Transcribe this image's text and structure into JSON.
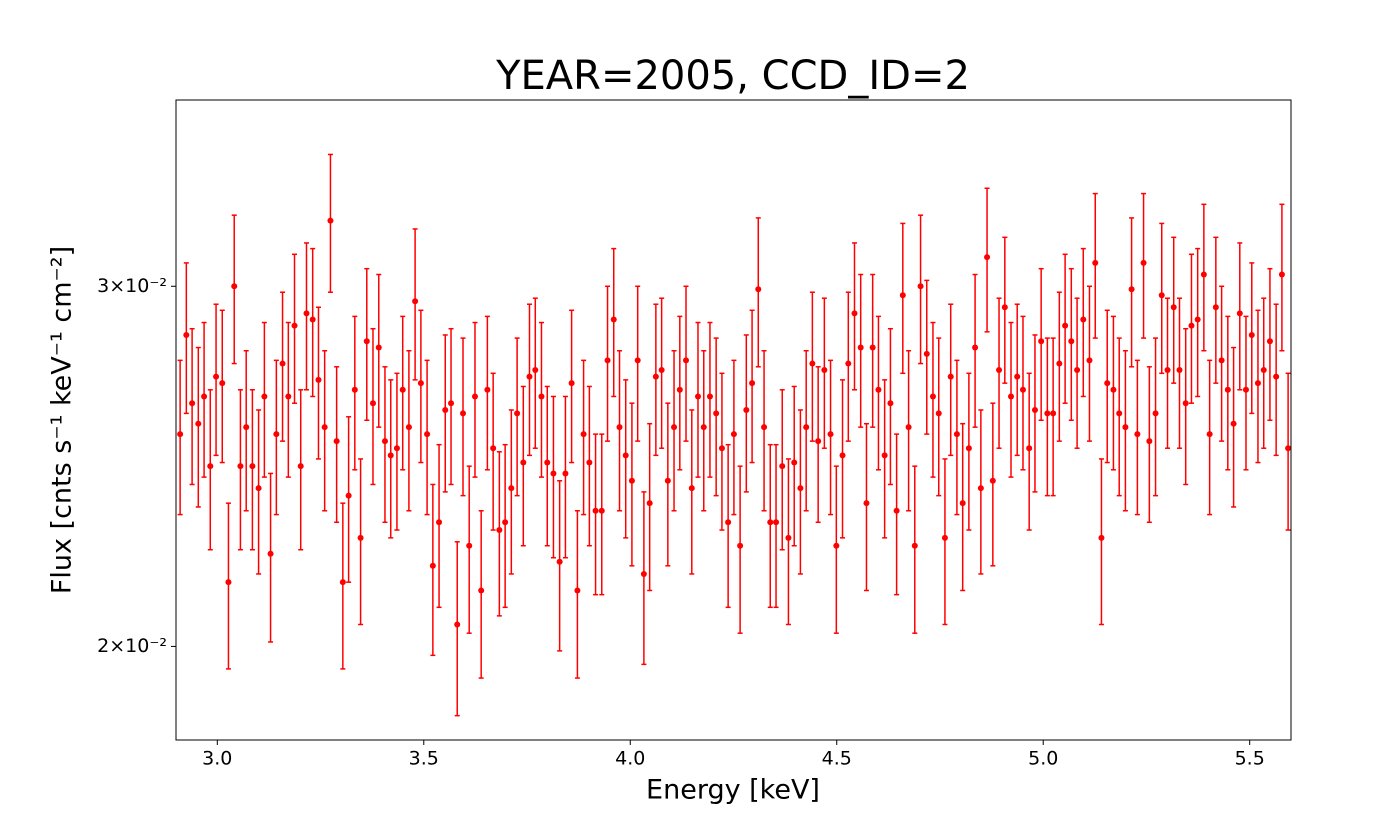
{
  "chart_data": {
    "type": "errorbar-scatter",
    "title": "YEAR=2005, CCD_ID=2",
    "xlabel": "Energy [keV]",
    "ylabel": "Flux [cnts s⁻¹ keV⁻¹ cm⁻²]",
    "yscale": "log",
    "color": "#ff0000",
    "xlim": [
      2.9,
      5.6
    ],
    "ylim": [
      0.018,
      0.037
    ],
    "xticks": [
      {
        "value": 3,
        "label": "3.0"
      },
      3.5,
      {
        "value": 4,
        "label": "4.0"
      },
      4.5,
      {
        "value": 5,
        "label": "5.0"
      },
      5.5
    ],
    "yticks": [
      {
        "value": 0.02,
        "label": "2×10⁻²"
      },
      {
        "value": 0.03,
        "label": "3×10⁻²"
      }
    ],
    "x": [
      2.91,
      2.925,
      2.939,
      2.954,
      2.968,
      2.983,
      2.997,
      3.012,
      3.027,
      3.041,
      3.056,
      3.07,
      3.085,
      3.1,
      3.114,
      3.129,
      3.143,
      3.158,
      3.172,
      3.187,
      3.202,
      3.216,
      3.231,
      3.245,
      3.26,
      3.274,
      3.289,
      3.304,
      3.318,
      3.333,
      3.347,
      3.362,
      3.377,
      3.391,
      3.406,
      3.42,
      3.435,
      3.449,
      3.464,
      3.479,
      3.493,
      3.508,
      3.522,
      3.537,
      3.552,
      3.566,
      3.581,
      3.595,
      3.61,
      3.624,
      3.639,
      3.654,
      3.668,
      3.683,
      3.697,
      3.712,
      3.726,
      3.741,
      3.756,
      3.77,
      3.785,
      3.799,
      3.814,
      3.829,
      3.843,
      3.858,
      3.872,
      3.887,
      3.901,
      3.916,
      3.931,
      3.945,
      3.96,
      3.974,
      3.989,
      4.004,
      4.018,
      4.033,
      4.047,
      4.062,
      4.076,
      4.091,
      4.106,
      4.12,
      4.135,
      4.149,
      4.164,
      4.178,
      4.193,
      4.208,
      4.222,
      4.237,
      4.251,
      4.266,
      4.281,
      4.295,
      4.31,
      4.324,
      4.339,
      4.353,
      4.368,
      4.383,
      4.397,
      4.412,
      4.426,
      4.441,
      4.455,
      4.47,
      4.485,
      4.499,
      4.514,
      4.528,
      4.543,
      4.558,
      4.572,
      4.587,
      4.601,
      4.616,
      4.63,
      4.645,
      4.66,
      4.674,
      4.689,
      4.703,
      4.718,
      4.733,
      4.747,
      4.762,
      4.776,
      4.791,
      4.805,
      4.82,
      4.835,
      4.849,
      4.864,
      4.878,
      4.893,
      4.907,
      4.922,
      4.937,
      4.951,
      4.966,
      4.98,
      4.995,
      5.01,
      5.024,
      5.039,
      5.053,
      5.068,
      5.082,
      5.097,
      5.112,
      5.126,
      5.141,
      5.155,
      5.17,
      5.184,
      5.199,
      5.214,
      5.228,
      5.243,
      5.257,
      5.272,
      5.287,
      5.301,
      5.316,
      5.33,
      5.345,
      5.359,
      5.374,
      5.389,
      5.403,
      5.418,
      5.432,
      5.447,
      5.461,
      5.476,
      5.491,
      5.505,
      5.52,
      5.534,
      5.549,
      5.564,
      5.578,
      5.593
    ],
    "values": [
      0.0254,
      0.0284,
      0.0263,
      0.0257,
      0.0265,
      0.0245,
      0.0271,
      0.0269,
      0.0215,
      0.03,
      0.0245,
      0.0256,
      0.0245,
      0.0239,
      0.0265,
      0.0222,
      0.0254,
      0.0275,
      0.0265,
      0.0287,
      0.0245,
      0.0291,
      0.0289,
      0.027,
      0.0256,
      0.0323,
      0.0252,
      0.0215,
      0.0237,
      0.0267,
      0.0226,
      0.0282,
      0.0263,
      0.028,
      0.0252,
      0.0248,
      0.025,
      0.0267,
      0.0256,
      0.0295,
      0.0269,
      0.0254,
      0.0219,
      0.023,
      0.0261,
      0.0263,
      0.0205,
      0.026,
      0.0224,
      0.0265,
      0.0213,
      0.0267,
      0.025,
      0.0228,
      0.023,
      0.0239,
      0.026,
      0.0246,
      0.0271,
      0.0273,
      0.0265,
      0.0246,
      0.0243,
      0.022,
      0.0243,
      0.0269,
      0.0213,
      0.0254,
      0.0246,
      0.0233,
      0.0233,
      0.0276,
      0.0289,
      0.0256,
      0.0248,
      0.0241,
      0.0276,
      0.0217,
      0.0235,
      0.0271,
      0.0273,
      0.0241,
      0.0256,
      0.0267,
      0.0276,
      0.0239,
      0.0265,
      0.0256,
      0.0265,
      0.026,
      0.025,
      0.023,
      0.0254,
      0.0224,
      0.0261,
      0.0269,
      0.0299,
      0.0256,
      0.023,
      0.023,
      0.0245,
      0.0226,
      0.0246,
      0.0239,
      0.0256,
      0.0275,
      0.0252,
      0.0273,
      0.0254,
      0.0224,
      0.0248,
      0.0275,
      0.0291,
      0.028,
      0.0235,
      0.028,
      0.0267,
      0.0248,
      0.0263,
      0.0233,
      0.0297,
      0.0256,
      0.0224,
      0.03,
      0.0278,
      0.0265,
      0.026,
      0.0226,
      0.0271,
      0.0254,
      0.0235,
      0.025,
      0.028,
      0.0239,
      0.031,
      0.0241,
      0.0273,
      0.0293,
      0.0265,
      0.0271,
      0.0267,
      0.025,
      0.0261,
      0.0282,
      0.026,
      0.026,
      0.0275,
      0.0287,
      0.0282,
      0.0273,
      0.0289,
      0.0276,
      0.0308,
      0.0226,
      0.0269,
      0.0267,
      0.026,
      0.0256,
      0.0299,
      0.0254,
      0.0308,
      0.0252,
      0.026,
      0.0297,
      0.0273,
      0.0293,
      0.0273,
      0.0263,
      0.0287,
      0.0289,
      0.0304,
      0.0254,
      0.0293,
      0.0276,
      0.0267,
      0.0257,
      0.0291,
      0.0267,
      0.0284,
      0.0269,
      0.0273,
      0.0282,
      0.0271,
      0.0304,
      0.025
    ],
    "errors": [
      0.0022,
      0.0024,
      0.0023,
      0.0023,
      0.0023,
      0.0022,
      0.0023,
      0.0023,
      0.002,
      0.0025,
      0.0022,
      0.0023,
      0.0022,
      0.0022,
      0.0023,
      0.0021,
      0.0022,
      0.0023,
      0.0023,
      0.0024,
      0.0022,
      0.0024,
      0.0024,
      0.0023,
      0.0023,
      0.0025,
      0.0022,
      0.002,
      0.0022,
      0.0023,
      0.0021,
      0.0024,
      0.0023,
      0.0024,
      0.0022,
      0.0022,
      0.0022,
      0.0023,
      0.0023,
      0.0025,
      0.0023,
      0.0022,
      0.0021,
      0.0021,
      0.0023,
      0.0023,
      0.002,
      0.0023,
      0.0021,
      0.0023,
      0.002,
      0.0023,
      0.0022,
      0.0021,
      0.0021,
      0.0022,
      0.0023,
      0.0022,
      0.0023,
      0.0023,
      0.0023,
      0.0022,
      0.0022,
      0.0021,
      0.0022,
      0.0023,
      0.002,
      0.0022,
      0.0022,
      0.0021,
      0.0021,
      0.0024,
      0.0024,
      0.0023,
      0.0022,
      0.0022,
      0.0024,
      0.0021,
      0.0022,
      0.0023,
      0.0023,
      0.0022,
      0.0023,
      0.0023,
      0.0024,
      0.0022,
      0.0023,
      0.0023,
      0.0023,
      0.0023,
      0.0022,
      0.0021,
      0.0022,
      0.0021,
      0.0023,
      0.0023,
      0.0025,
      0.0023,
      0.0021,
      0.0021,
      0.0022,
      0.0021,
      0.0022,
      0.0022,
      0.0023,
      0.0023,
      0.0022,
      0.0023,
      0.0022,
      0.0021,
      0.0022,
      0.0023,
      0.0024,
      0.0024,
      0.0022,
      0.0024,
      0.0023,
      0.0022,
      0.0023,
      0.0021,
      0.0025,
      0.0023,
      0.0021,
      0.0025,
      0.0024,
      0.0023,
      0.0023,
      0.0021,
      0.0023,
      0.0022,
      0.0022,
      0.0022,
      0.0024,
      0.0022,
      0.0025,
      0.0022,
      0.0023,
      0.0024,
      0.0023,
      0.0023,
      0.0023,
      0.0022,
      0.0023,
      0.0024,
      0.0023,
      0.0023,
      0.0023,
      0.0024,
      0.0024,
      0.0023,
      0.0024,
      0.0024,
      0.0025,
      0.0021,
      0.0023,
      0.0023,
      0.0023,
      0.0023,
      0.0025,
      0.0022,
      0.0025,
      0.0022,
      0.0023,
      0.0025,
      0.0023,
      0.0024,
      0.0023,
      0.0023,
      0.0024,
      0.0024,
      0.0025,
      0.0022,
      0.0024,
      0.0024,
      0.0023,
      0.0023,
      0.0024,
      0.0023,
      0.0024,
      0.0023,
      0.0023,
      0.0024,
      0.0023,
      0.0025,
      0.0022
    ]
  }
}
